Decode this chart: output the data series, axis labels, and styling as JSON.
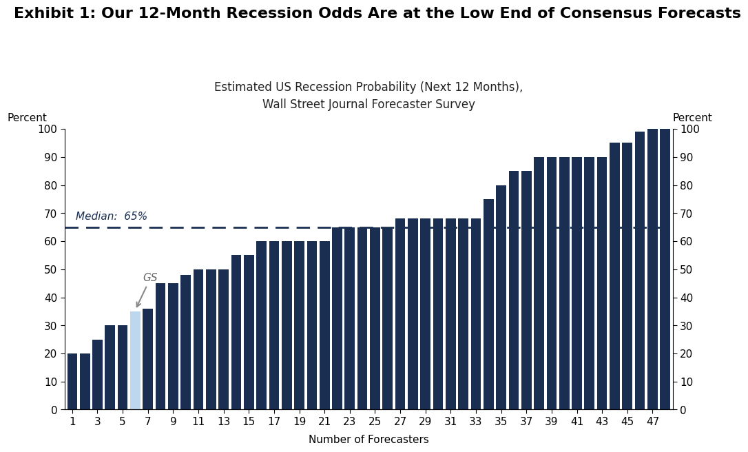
{
  "title": "Exhibit 1: Our 12-Month Recession Odds Are at the Low End of Consensus Forecasts",
  "chart_title_line1": "Estimated US Recession Probability (Next 12 Months),",
  "chart_title_line2": "Wall Street Journal Forecaster Survey",
  "ylabel_left": "Percent",
  "ylabel_right": "Percent",
  "xlabel": "Number of Forecasters",
  "median_value": 65,
  "median_label": "Median:  65%",
  "gs_bar_index": 5,
  "gs_label": "GS",
  "bar_values": [
    20,
    20,
    25,
    30,
    30,
    35,
    36,
    45,
    45,
    48,
    50,
    50,
    50,
    55,
    55,
    60,
    60,
    60,
    60,
    60,
    60,
    65,
    65,
    65,
    65,
    65,
    68,
    68,
    68,
    68,
    68,
    68,
    68,
    75,
    80,
    85,
    85,
    90,
    90,
    90,
    90,
    90,
    90,
    95,
    95,
    99,
    100,
    100
  ],
  "x_tick_labels": [
    "1",
    "3",
    "5",
    "7",
    "9",
    "11",
    "13",
    "15",
    "17",
    "19",
    "21",
    "23",
    "25",
    "27",
    "29",
    "31",
    "33",
    "35",
    "37",
    "39",
    "41",
    "43",
    "45",
    "47"
  ],
  "x_tick_positions": [
    0,
    2,
    4,
    6,
    8,
    10,
    12,
    14,
    16,
    18,
    20,
    22,
    24,
    26,
    28,
    30,
    32,
    34,
    36,
    38,
    40,
    42,
    44,
    46
  ],
  "dark_bar_color": "#1a2e52",
  "gs_bar_color": "#bdd7ee",
  "median_line_color": "#1a2e52",
  "background_color": "#ffffff",
  "ylim": [
    0,
    100
  ],
  "title_fontsize": 16,
  "subtitle_fontsize": 12,
  "axis_label_fontsize": 11,
  "tick_fontsize": 11,
  "median_fontsize": 11
}
